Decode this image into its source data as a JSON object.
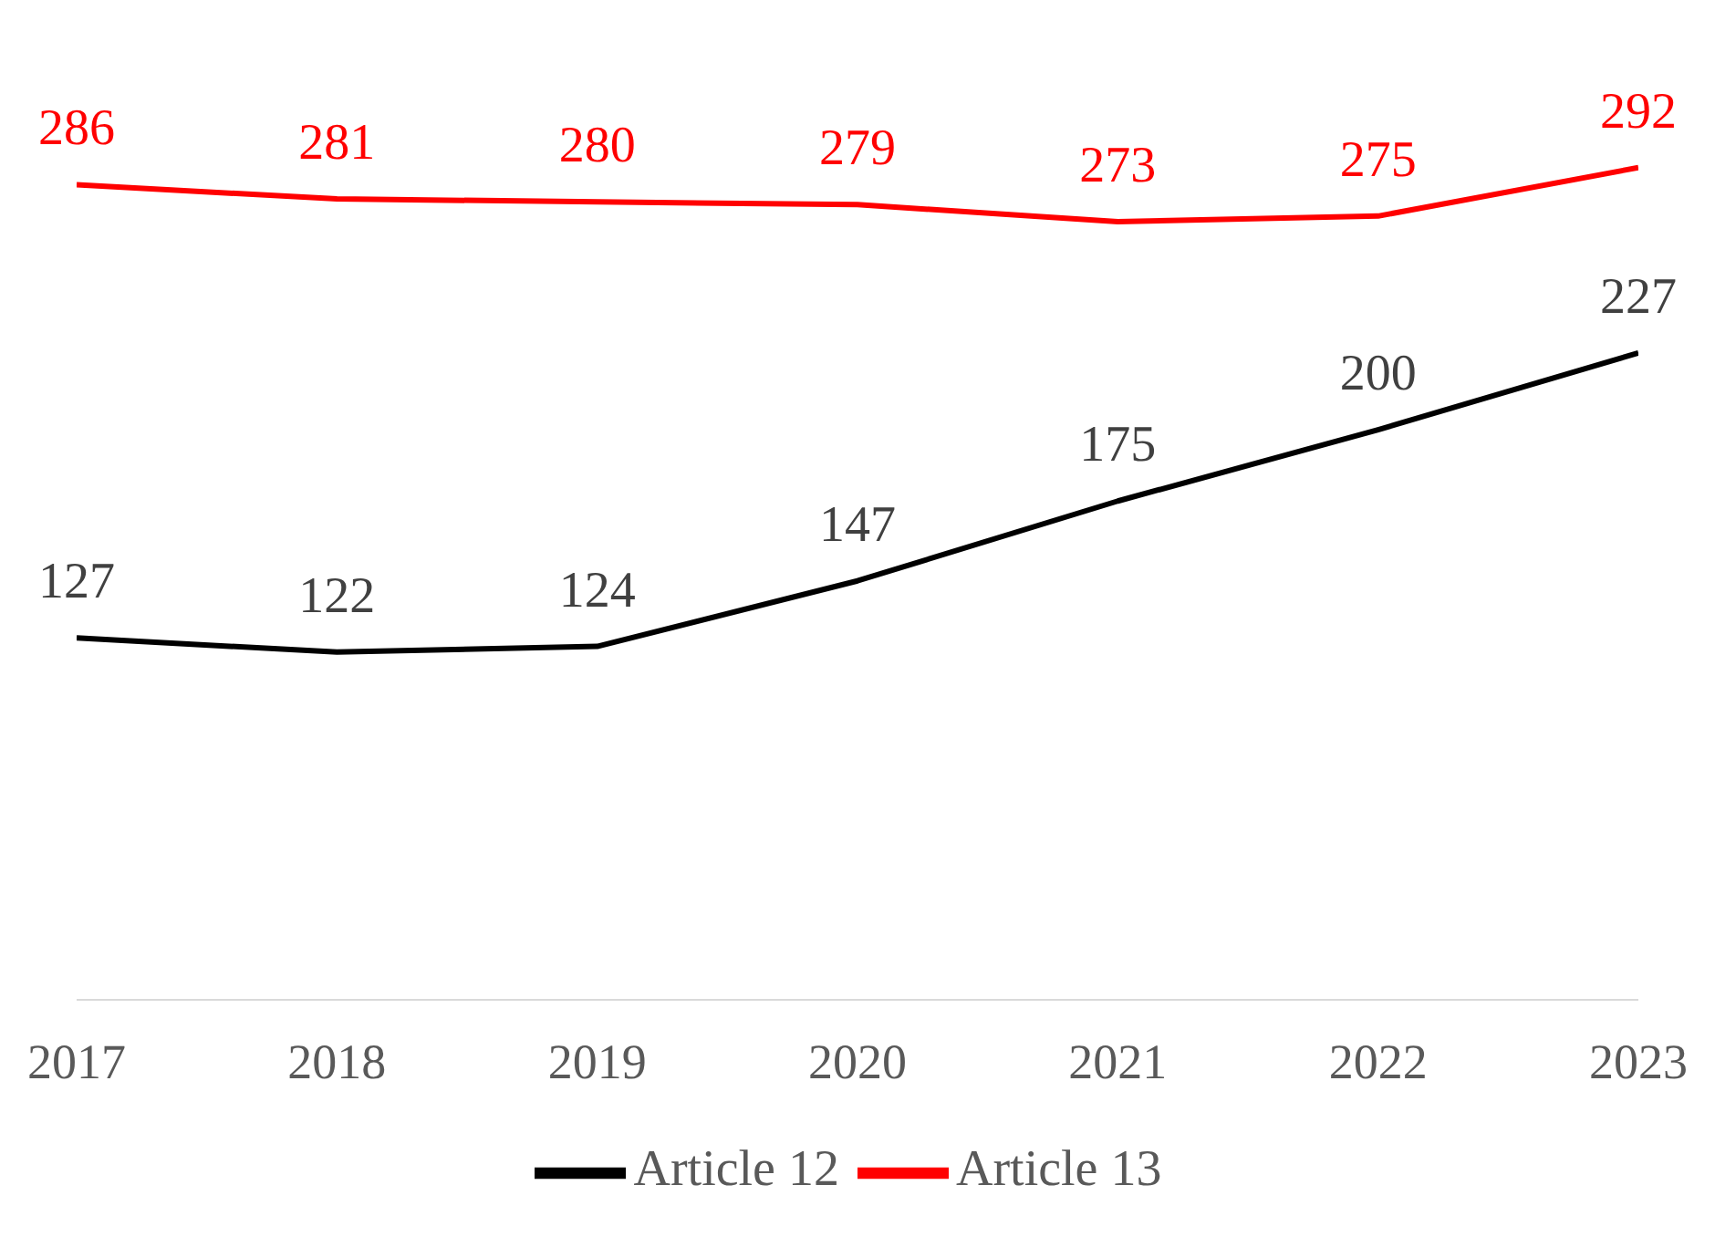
{
  "chart_data": {
    "type": "line",
    "categories": [
      "2017",
      "2018",
      "2019",
      "2020",
      "2021",
      "2022",
      "2023"
    ],
    "series": [
      {
        "name": "Article 12",
        "color": "#000000",
        "values": [
          127,
          122,
          124,
          147,
          175,
          200,
          227
        ]
      },
      {
        "name": "Article 13",
        "color": "#ff0000",
        "values": [
          286,
          281,
          280,
          279,
          273,
          275,
          292
        ]
      }
    ],
    "data_labels": true,
    "legend": "bottom",
    "grid": false,
    "marker": "none",
    "line_style": "solid"
  }
}
